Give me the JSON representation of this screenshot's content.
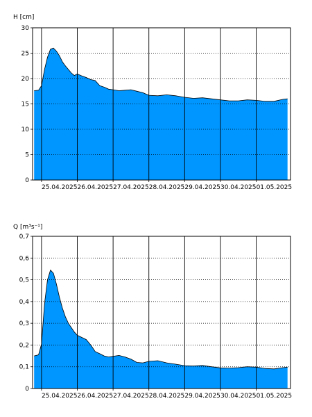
{
  "colors": {
    "fill": "#0096FF",
    "stroke": "#000000",
    "grid": "#000000",
    "background": "#FFFFFF"
  },
  "chart_data": [
    {
      "type": "area",
      "ylabel": "H [cm]",
      "ylim": [
        0,
        30
      ],
      "yticks": [
        0,
        5,
        10,
        15,
        20,
        25,
        30
      ],
      "xlim": [
        "2025-04-24T18:00",
        "2025-05-01T23:00"
      ],
      "xticks": [
        "25.04.2025",
        "26.04.2025",
        "27.04.2025",
        "28.04.2025",
        "29.04.2025",
        "30.04.2025",
        "01.05.2025"
      ],
      "grid": true,
      "x": [
        "2025-04-24T19:00",
        "2025-04-24T22:00",
        "2025-04-25T00:00",
        "2025-04-25T02:00",
        "2025-04-25T04:00",
        "2025-04-25T06:00",
        "2025-04-25T08:00",
        "2025-04-25T10:00",
        "2025-04-25T12:00",
        "2025-04-25T14:00",
        "2025-04-25T16:00",
        "2025-04-25T18:00",
        "2025-04-25T20:00",
        "2025-04-25T22:00",
        "2025-04-26T00:00",
        "2025-04-26T03:00",
        "2025-04-26T06:00",
        "2025-04-26T09:00",
        "2025-04-26T12:00",
        "2025-04-26T15:00",
        "2025-04-26T18:00",
        "2025-04-26T21:00",
        "2025-04-27T00:00",
        "2025-04-27T04:00",
        "2025-04-27T08:00",
        "2025-04-27T12:00",
        "2025-04-27T16:00",
        "2025-04-27T20:00",
        "2025-04-28T00:00",
        "2025-04-28T06:00",
        "2025-04-28T12:00",
        "2025-04-28T18:00",
        "2025-04-29T00:00",
        "2025-04-29T06:00",
        "2025-04-29T12:00",
        "2025-04-29T18:00",
        "2025-04-30T00:00",
        "2025-04-30T06:00",
        "2025-04-30T12:00",
        "2025-04-30T18:00",
        "2025-05-01T00:00",
        "2025-05-01T06:00",
        "2025-05-01T12:00",
        "2025-05-01T18:00",
        "2025-05-01T21:00"
      ],
      "values": [
        17.6,
        17.7,
        18.6,
        21.8,
        24.2,
        25.8,
        26.0,
        25.4,
        24.5,
        23.3,
        22.5,
        21.8,
        21.1,
        20.6,
        20.9,
        20.5,
        20.2,
        19.8,
        19.6,
        18.6,
        18.3,
        17.9,
        17.8,
        17.6,
        17.7,
        17.8,
        17.5,
        17.2,
        16.7,
        16.6,
        16.8,
        16.6,
        16.3,
        16.1,
        16.2,
        16.0,
        15.8,
        15.6,
        15.6,
        15.8,
        15.7,
        15.5,
        15.5,
        15.9,
        16.0
      ]
    },
    {
      "type": "area",
      "ylabel": "Q [m³s⁻¹]",
      "ylim": [
        0,
        0.7
      ],
      "yticks": [
        0,
        0.1,
        0.2,
        0.3,
        0.4,
        0.5,
        0.6,
        0.7
      ],
      "xlim": [
        "2025-04-24T18:00",
        "2025-05-01T23:00"
      ],
      "xticks": [
        "25.04.2025",
        "26.04.2025",
        "27.04.2025",
        "28.04.2025",
        "29.04.2025",
        "30.04.2025",
        "01.05.2025"
      ],
      "grid": true,
      "x": [
        "2025-04-24T19:00",
        "2025-04-24T22:00",
        "2025-04-25T00:00",
        "2025-04-25T02:00",
        "2025-04-25T04:00",
        "2025-04-25T06:00",
        "2025-04-25T08:00",
        "2025-04-25T10:00",
        "2025-04-25T12:00",
        "2025-04-25T14:00",
        "2025-04-25T16:00",
        "2025-04-25T18:00",
        "2025-04-25T20:00",
        "2025-04-25T22:00",
        "2025-04-26T00:00",
        "2025-04-26T03:00",
        "2025-04-26T06:00",
        "2025-04-26T09:00",
        "2025-04-26T12:00",
        "2025-04-26T15:00",
        "2025-04-26T18:00",
        "2025-04-26T21:00",
        "2025-04-27T00:00",
        "2025-04-27T04:00",
        "2025-04-27T08:00",
        "2025-04-27T12:00",
        "2025-04-27T16:00",
        "2025-04-27T20:00",
        "2025-04-28T00:00",
        "2025-04-28T06:00",
        "2025-04-28T12:00",
        "2025-04-28T18:00",
        "2025-04-29T00:00",
        "2025-04-29T06:00",
        "2025-04-29T12:00",
        "2025-04-29T18:00",
        "2025-04-30T00:00",
        "2025-04-30T06:00",
        "2025-04-30T12:00",
        "2025-04-30T18:00",
        "2025-05-01T00:00",
        "2025-05-01T06:00",
        "2025-05-01T12:00",
        "2025-05-01T18:00",
        "2025-05-01T21:00"
      ],
      "values": [
        0.15,
        0.155,
        0.205,
        0.39,
        0.5,
        0.545,
        0.53,
        0.48,
        0.42,
        0.37,
        0.33,
        0.3,
        0.28,
        0.26,
        0.245,
        0.235,
        0.225,
        0.2,
        0.17,
        0.16,
        0.15,
        0.145,
        0.148,
        0.152,
        0.145,
        0.135,
        0.12,
        0.118,
        0.125,
        0.128,
        0.118,
        0.112,
        0.105,
        0.104,
        0.106,
        0.1,
        0.095,
        0.094,
        0.096,
        0.1,
        0.098,
        0.092,
        0.09,
        0.096,
        0.098
      ]
    }
  ]
}
